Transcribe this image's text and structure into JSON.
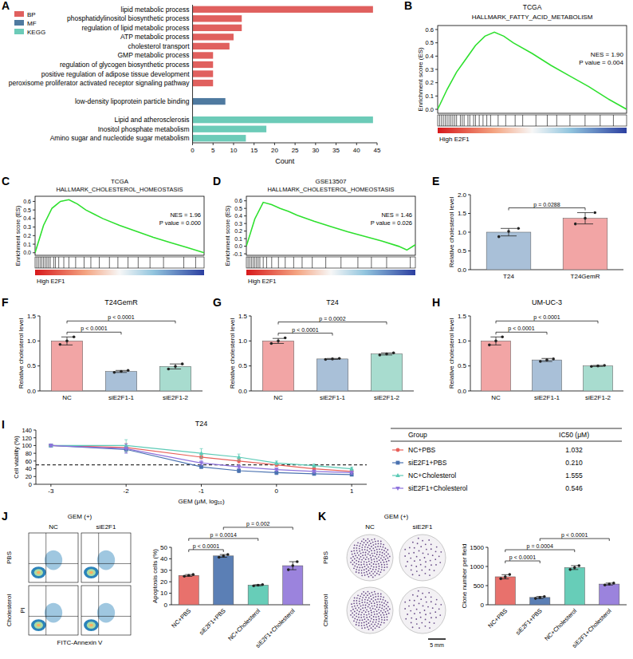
{
  "chart_data": [
    {
      "panel": "A",
      "type": "bar",
      "orientation": "horizontal",
      "x_label": "Count",
      "xlim": [
        0,
        45
      ],
      "xticks": [
        0,
        5,
        10,
        15,
        20,
        25,
        30,
        35,
        40,
        45
      ],
      "legend": "top-left",
      "series": [
        {
          "name": "BP",
          "color": "#e0605e",
          "categories": [
            "lipid metabolic process",
            "phosphatidylinositol biosynthetic process",
            "regulation of lipid metabolic process",
            "ATP metabolic process",
            "cholesterol transport",
            "GMP metabolic process",
            "regulation of glycogen biosynthetic process",
            "positive regulation of adipose tissue development",
            "peroxisome proliferator activated receptor signaling pathway"
          ],
          "values": [
            44,
            12,
            12,
            10,
            9,
            5,
            5,
            5,
            5
          ]
        },
        {
          "name": "MF",
          "color": "#4f7aa0",
          "categories": [
            "low-density lipoprotein particle binding"
          ],
          "values": [
            8
          ]
        },
        {
          "name": "KEGG",
          "color": "#6ccbb8",
          "categories": [
            "Lipid and atherosclerosis",
            "Inositol phosphate metabolism",
            "Amino sugar and nucleotide sugar metabolism"
          ],
          "values": [
            44,
            18,
            13
          ]
        }
      ]
    },
    {
      "panel": "B",
      "type": "gsea",
      "title": "TCGA",
      "subtitle": "HALLMARK_FATTY_ACID_METABOLISM",
      "y_label": "Enrichment score (ES)",
      "x_label": "High E2F1",
      "tick_labels": "y",
      "color": "#2ee02e",
      "xlim": [
        0,
        100
      ],
      "ylim": [
        -0.03,
        0.63
      ],
      "yticks": [
        {
          "value": 0,
          "label": "0.0"
        },
        0.1,
        0.2,
        0.3,
        0.4,
        0.5,
        0.6
      ],
      "x": [
        0,
        5,
        10,
        15,
        20,
        25,
        30,
        35,
        40,
        50,
        60,
        70,
        80,
        90,
        100
      ],
      "values": [
        0,
        0.15,
        0.28,
        0.38,
        0.48,
        0.55,
        0.58,
        0.55,
        0.5,
        0.42,
        0.33,
        0.25,
        0.17,
        0.08,
        0
      ],
      "hits": [
        1,
        2,
        3,
        4,
        5,
        6,
        7,
        8,
        9,
        10,
        12,
        13,
        14,
        16,
        17,
        19,
        20,
        22,
        24,
        26,
        28,
        32,
        36,
        41,
        45,
        52,
        58,
        63,
        70,
        78,
        86,
        93
      ],
      "annotations": [
        "NES = 1.90",
        "P value = 0.004"
      ]
    },
    {
      "panel": "C",
      "type": "gsea",
      "title": "TCGA",
      "subtitle": "HALLMARK_CHOLESTEROL_HOMEOSTASIS",
      "y_label": "Enrichment score (ES)",
      "x_label": "High E2F1",
      "tick_labels": "y",
      "color": "#2ee02e",
      "xlim": [
        0,
        100
      ],
      "ylim": [
        -0.03,
        0.66
      ],
      "yticks": [
        {
          "value": 0,
          "label": "0.0"
        },
        0.1,
        0.2,
        0.3,
        0.4,
        0.5,
        0.6
      ],
      "x": [
        0,
        5,
        10,
        15,
        20,
        25,
        30,
        35,
        40,
        50,
        60,
        70,
        80,
        90,
        100
      ],
      "values": [
        0,
        0.32,
        0.52,
        0.6,
        0.62,
        0.57,
        0.5,
        0.45,
        0.4,
        0.32,
        0.25,
        0.18,
        0.12,
        0.06,
        0
      ],
      "hits": [
        1,
        2,
        3,
        4,
        5,
        6,
        7,
        8,
        9,
        11,
        12,
        14,
        17,
        20,
        24,
        29,
        33,
        38,
        44,
        49,
        55,
        61,
        68,
        76,
        88,
        95
      ],
      "annotations": [
        "NES = 1.96",
        "P value = 0.000"
      ]
    },
    {
      "panel": "D",
      "type": "gsea",
      "title": "GSE13507",
      "subtitle": "HALLMARK_CHOLESTEROL_HOMEOSTASIS",
      "y_label": "Enrichment score (ES)",
      "x_label": "High E2F1",
      "tick_labels": "y",
      "color": "#2ee02e",
      "xlim": [
        0,
        100
      ],
      "ylim": [
        -0.12,
        0.66
      ],
      "yticks": [
        -0.1,
        {
          "value": 0,
          "label": "0.0"
        },
        0.1,
        0.2,
        0.3,
        0.4,
        0.5,
        0.6
      ],
      "x": [
        0,
        5,
        10,
        15,
        20,
        25,
        30,
        35,
        40,
        50,
        60,
        70,
        80,
        90,
        95,
        100
      ],
      "values": [
        0,
        0.36,
        0.58,
        0.55,
        0.5,
        0.46,
        0.41,
        0.37,
        0.33,
        0.26,
        0.19,
        0.13,
        0.07,
        0,
        -0.05,
        0.02
      ],
      "hits": [
        1,
        2,
        3,
        4,
        5,
        6,
        7,
        8,
        10,
        12,
        15,
        19,
        23,
        28,
        33,
        39,
        47,
        56,
        66,
        74,
        83,
        97
      ],
      "annotations": [
        "NES = 1.46",
        "P value = 0.026"
      ]
    },
    {
      "panel": "E",
      "type": "bar",
      "y_label": "Relative cholesterol level",
      "categories": [
        "T24",
        "T24GemR"
      ],
      "values": [
        1.0,
        1.37
      ],
      "errors": [
        0.1,
        0.15
      ],
      "points": [
        [
          0.88,
          1.02,
          1.1
        ],
        [
          1.22,
          1.37,
          1.52
        ]
      ],
      "colors": [
        "#a9c0d8",
        "#f2a5a5"
      ],
      "ylim": [
        0,
        2
      ],
      "yticks": [
        {
          "value": 0,
          "label": "0.0"
        },
        0.5,
        {
          "value": 1,
          "label": "1.0"
        },
        1.5,
        {
          "value": 2,
          "label": "2.0"
        }
      ],
      "comparisons": [
        {
          "from": 0,
          "to": 1,
          "label": "p = 0.0288"
        }
      ]
    },
    {
      "panel": "F",
      "type": "bar",
      "title": "T24GemR",
      "y_label": "Relative cholesterol level",
      "categories": [
        "NC",
        "siE2F1-1",
        "siE2F1-2"
      ],
      "values": [
        1.0,
        0.39,
        0.49
      ],
      "errors": [
        0.08,
        0.02,
        0.05
      ],
      "points": [
        [
          0.93,
          1.0,
          1.08
        ],
        [
          0.37,
          0.39,
          0.41
        ],
        [
          0.44,
          0.49,
          0.54
        ]
      ],
      "colors": [
        "#f2a5a5",
        "#a9c0d8",
        "#a8dccf"
      ],
      "ylim": [
        0,
        1.5
      ],
      "yticks": [
        {
          "value": 0,
          "label": "0.0"
        },
        0.5,
        {
          "value": 1,
          "label": "1.0"
        },
        1.5
      ],
      "comparisons": [
        {
          "from": 0,
          "to": 1,
          "label": "p < 0.0001"
        },
        {
          "from": 0,
          "to": 2,
          "label": "p < 0.0001"
        }
      ]
    },
    {
      "panel": "G",
      "type": "bar",
      "title": "T24",
      "y_label": "Relative cholesterol level",
      "categories": [
        "NC",
        "siE2F1-1",
        "siE2F1-2"
      ],
      "values": [
        1.0,
        0.64,
        0.74
      ],
      "errors": [
        0.05,
        0.01,
        0.02
      ],
      "points": [
        [
          0.95,
          1.0,
          1.06
        ],
        [
          0.63,
          0.64,
          0.65
        ],
        [
          0.72,
          0.74,
          0.76
        ]
      ],
      "colors": [
        "#f2a5a5",
        "#a9c0d8",
        "#a8dccf"
      ],
      "ylim": [
        0,
        1.5
      ],
      "yticks": [
        {
          "value": 0,
          "label": "0.0"
        },
        0.5,
        {
          "value": 1,
          "label": "1.0"
        },
        1.5
      ],
      "comparisons": [
        {
          "from": 0,
          "to": 1,
          "label": "p < 0.0001"
        },
        {
          "from": 0,
          "to": 2,
          "label": "p = 0.0002"
        }
      ]
    },
    {
      "panel": "H",
      "type": "bar",
      "title": "UM-UC-3",
      "y_label": "Relative cholesterol level",
      "categories": [
        "NC",
        "siE2F1-1",
        "siE2F1-2"
      ],
      "values": [
        1.0,
        0.62,
        0.5
      ],
      "errors": [
        0.08,
        0.03,
        0.01
      ],
      "points": [
        [
          0.92,
          1.0,
          1.08
        ],
        [
          0.59,
          0.62,
          0.64
        ],
        [
          0.49,
          0.5,
          0.51
        ]
      ],
      "colors": [
        "#f2a5a5",
        "#a9c0d8",
        "#a8dccf"
      ],
      "ylim": [
        0,
        1.5
      ],
      "yticks": [
        {
          "value": 0,
          "label": "0.0"
        },
        0.5,
        {
          "value": 1,
          "label": "1.0"
        },
        1.5
      ],
      "comparisons": [
        {
          "from": 0,
          "to": 1,
          "label": "p < 0.0001"
        },
        {
          "from": 0,
          "to": 2,
          "label": "p < 0.0001"
        }
      ]
    },
    {
      "panel": "I",
      "type": "line",
      "title": "T24",
      "x_label": "GEM (μM, log₁₀)",
      "y_label": "Cell viability (%)",
      "legend": "right",
      "xlim": [
        -3.2,
        1.2
      ],
      "xticks": [
        -3,
        -2,
        -1,
        0,
        1
      ],
      "ylim": [
        0,
        140
      ],
      "yticks": [
        0,
        20,
        40,
        60,
        80,
        100,
        120,
        140
      ],
      "hline": 50,
      "x": [
        -3,
        -2,
        -1,
        -0.5,
        0,
        0.5,
        1
      ],
      "table_header": [
        "Group",
        "IC50 (μM)"
      ],
      "series": [
        {
          "name": "NC+PBS",
          "color": "#e8605a",
          "marker": "circle",
          "values": [
            100,
            95,
            70,
            60,
            50,
            40,
            33
          ],
          "errors": [
            3,
            10,
            4,
            5,
            4,
            3,
            4
          ],
          "ic50": 1.032
        },
        {
          "name": "siE2F1+PBS",
          "color": "#4a72b0",
          "marker": "square",
          "values": [
            100,
            90,
            45,
            35,
            30,
            27,
            25
          ],
          "errors": [
            2,
            8,
            4,
            5,
            5,
            3,
            3
          ],
          "ic50": {
            "value": 0.21,
            "label": "0.210"
          }
        },
        {
          "name": "NC+Cholesterol",
          "color": "#5ccab6",
          "marker": "triangle",
          "values": [
            100,
            100,
            80,
            70,
            55,
            48,
            40
          ],
          "errors": [
            3,
            15,
            12,
            8,
            5,
            4,
            4
          ],
          "ic50": 1.555
        },
        {
          "name": "siE2F1+Cholesterol",
          "color": "#8e72dc",
          "marker": "triangle-down",
          "values": [
            100,
            92,
            55,
            45,
            38,
            33,
            30
          ],
          "errors": [
            4,
            12,
            6,
            5,
            4,
            4,
            4
          ],
          "ic50": 0.546
        }
      ]
    },
    {
      "panel": "J",
      "type": "bar",
      "condition": "GEM (+)",
      "image_columns": [
        "NC",
        "siE2F1"
      ],
      "image_rows": [
        "PBS",
        "Cholesterol"
      ],
      "image_x_label": "FITC-Annexin V",
      "image_y_label": "PI",
      "y_label": "Apoptosis cells (%)",
      "categories": [
        "NC+PBS",
        "siE2F1+PBS",
        "NC+Cholesterol",
        "siE2F1+Cholesterol"
      ],
      "values": [
        25.5,
        42.5,
        17,
        34
      ],
      "errors": [
        0.8,
        1.2,
        0.5,
        3.5
      ],
      "points": [
        [
          24.8,
          25.5,
          26.3
        ],
        [
          41.3,
          42.5,
          43.8
        ],
        [
          16.5,
          17,
          17.5
        ],
        [
          30.5,
          34,
          37.5
        ]
      ],
      "colors": [
        "#e8716c",
        "#5b7fb5",
        "#67cdb8",
        "#9b83dd"
      ],
      "ylim": [
        0,
        50
      ],
      "yticks": [
        0,
        10,
        20,
        30,
        40,
        50
      ],
      "comparisons": [
        {
          "from": 0,
          "to": 1,
          "label": "p < 0.0001"
        },
        {
          "from": 0,
          "to": 2,
          "label": "p = 0.0014"
        },
        {
          "from": 1,
          "to": 3,
          "label": "p = 0.002"
        }
      ]
    },
    {
      "panel": "K",
      "type": "bar",
      "condition": "GEM (+)",
      "image_columns": [
        "NC",
        "siE2F1"
      ],
      "image_rows": [
        "PBS",
        "Cholesterol"
      ],
      "scale_bar": "5 mm",
      "y_label": "Clone number per field",
      "categories": [
        "NC+PBS",
        "siE2F1+PBS",
        "NC+Cholesterol",
        "siE2F1+Cholesterol"
      ],
      "values": [
        730,
        190,
        970,
        540
      ],
      "errors": [
        55,
        25,
        50,
        25
      ],
      "points": [
        [
          680,
          730,
          790
        ],
        [
          165,
          190,
          215
        ],
        [
          920,
          970,
          1020
        ],
        [
          515,
          540,
          565
        ]
      ],
      "colors": [
        "#e8716c",
        "#5b7fb5",
        "#67cdb8",
        "#9b83dd"
      ],
      "ylim": [
        0,
        1500
      ],
      "yticks": [
        0,
        500,
        1000,
        1500
      ],
      "comparisons": [
        {
          "from": 0,
          "to": 1,
          "label": "p < 0.0001"
        },
        {
          "from": 0,
          "to": 2,
          "label": "p = 0.0004"
        },
        {
          "from": 1,
          "to": 3,
          "label": "p < 0.0001"
        }
      ]
    }
  ]
}
